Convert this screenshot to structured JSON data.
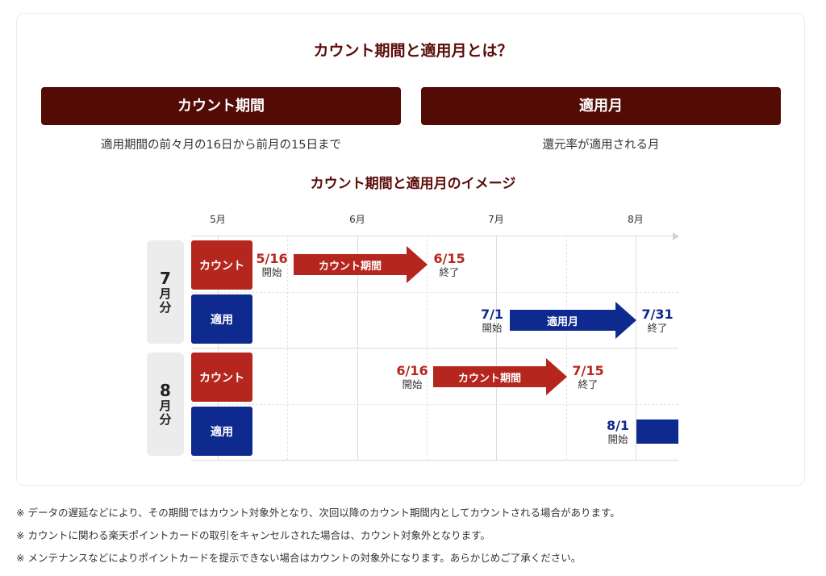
{
  "title": "カウント期間と適用月とは？",
  "columns": [
    {
      "header": "カウント期間",
      "description": "適用期間の前々月の16日から前月の15日まで"
    },
    {
      "header": "適用月",
      "description": "還元率が適用される月"
    }
  ],
  "diagram": {
    "title": "カウント期間と適用月のイメージ",
    "months": [
      "5月",
      "6月",
      "7月",
      "8月"
    ],
    "groups": [
      {
        "num": "7",
        "ch1": "月",
        "ch2": "分",
        "count_label": "カウント",
        "apply_label": "適用",
        "count_start": {
          "date": "5/16",
          "sub": "開始"
        },
        "count_arrow": "カウント期間",
        "count_end": {
          "date": "6/15",
          "sub": "終了"
        },
        "apply_start": {
          "date": "7/1",
          "sub": "開始"
        },
        "apply_arrow": "適用月",
        "apply_end": {
          "date": "7/31",
          "sub": "終了"
        }
      },
      {
        "num": "8",
        "ch1": "月",
        "ch2": "分",
        "count_label": "カウント",
        "apply_label": "適用",
        "count_start": {
          "date": "6/16",
          "sub": "開始"
        },
        "count_arrow": "カウント期間",
        "count_end": {
          "date": "7/15",
          "sub": "終了"
        },
        "apply_start": {
          "date": "8/1",
          "sub": "開始"
        }
      }
    ],
    "colors": {
      "count": "#b5261e",
      "apply": "#0e2a8e",
      "header": "#520c05"
    }
  },
  "notes": [
    "※ データの遅延などにより、その期間ではカウント対象外となり、次回以降のカウント期間内としてカウントされる場合があります。",
    "※ カウントに関わる楽天ポイントカードの取引をキャンセルされた場合は、カウント対象外となります。",
    "※ メンテナンスなどによりポイントカードを提示できない場合はカウントの対象外になります。あらかじめご了承ください。"
  ]
}
